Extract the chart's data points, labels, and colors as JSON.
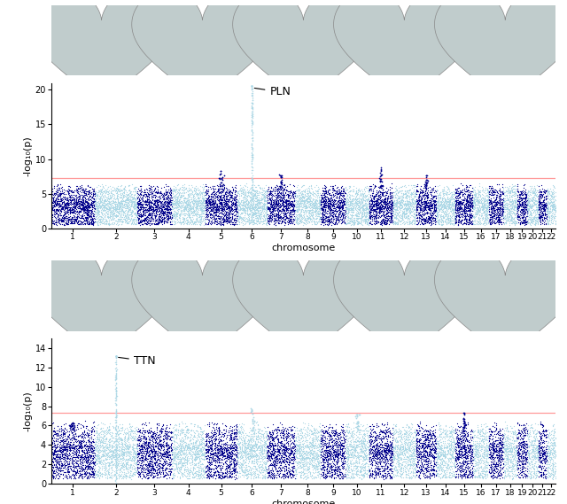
{
  "chromosomes": [
    1,
    2,
    3,
    4,
    5,
    6,
    7,
    8,
    9,
    10,
    11,
    12,
    13,
    14,
    15,
    16,
    17,
    18,
    19,
    20,
    21,
    22
  ],
  "color_dark": "#00008B",
  "color_light": "#ADD8E6",
  "significance_line": 7.3,
  "significance_color": "#FF8080",
  "top1": {
    "ylim": [
      0,
      21
    ],
    "yticks": [
      0,
      5,
      10,
      15,
      20
    ],
    "peak_chrom": 6,
    "peak_val": 20.5,
    "peak_label": "PLN",
    "secondary_peaks": [
      {
        "chrom": 5,
        "val": 8.3
      },
      {
        "chrom": 7,
        "val": 7.8
      },
      {
        "chrom": 11,
        "val": 8.8
      },
      {
        "chrom": 13,
        "val": 7.7
      }
    ],
    "base_max": 6.0,
    "base_mean": 3.5
  },
  "top2": {
    "ylim": [
      0,
      15
    ],
    "yticks": [
      0,
      2,
      4,
      6,
      8,
      10,
      12,
      14
    ],
    "peak_chrom": 2,
    "peak_val": 13.2,
    "peak_label": "TTN",
    "secondary_peaks": [
      {
        "chrom": 6,
        "val": 7.8
      },
      {
        "chrom": 10,
        "val": 7.2
      },
      {
        "chrom": 15,
        "val": 7.4
      },
      {
        "chrom": 1,
        "val": 6.3
      }
    ],
    "base_max": 6.0,
    "base_mean": 3.5
  },
  "xlabel": "chromosome",
  "ylabel": "-log₁₀(p)",
  "chrom_sizes": {
    "1": 249,
    "2": 242,
    "3": 198,
    "4": 190,
    "5": 181,
    "6": 171,
    "7": 159,
    "8": 146,
    "9": 141,
    "10": 135,
    "11": 135,
    "12": 133,
    "13": 115,
    "14": 107,
    "15": 102,
    "16": 90,
    "17": 83,
    "18": 78,
    "19": 59,
    "20": 63,
    "21": 48,
    "22": 51
  }
}
